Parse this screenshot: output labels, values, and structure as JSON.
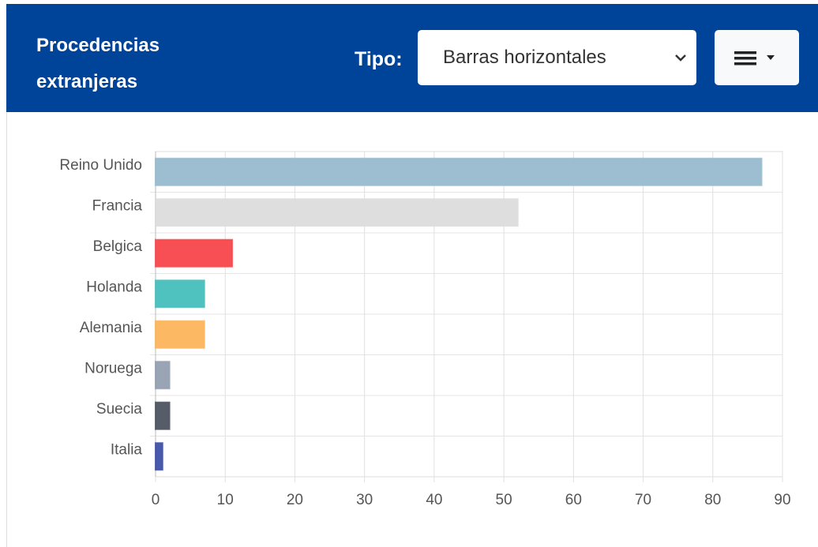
{
  "header": {
    "title": "Procedencias extranjeras",
    "type_label": "Tipo:",
    "type_select": "Barras horizontales"
  },
  "chart_data": {
    "type": "hbar",
    "categories": [
      "Reino Unido",
      "Francia",
      "Belgica",
      "Holanda",
      "Alemania",
      "Noruega",
      "Suecia",
      "Italia"
    ],
    "values": [
      87,
      52,
      11,
      7,
      7,
      2,
      2,
      1
    ],
    "colors": [
      "#97bbcd",
      "#dcdcdc",
      "#f7464a",
      "#46bfbd",
      "#fdb45c",
      "#949fb1",
      "#4d5360",
      "#3f51a8"
    ],
    "xlim": [
      0,
      90
    ],
    "xticks": [
      0,
      10,
      20,
      30,
      40,
      50,
      60,
      70,
      80,
      90
    ],
    "grid": true
  }
}
